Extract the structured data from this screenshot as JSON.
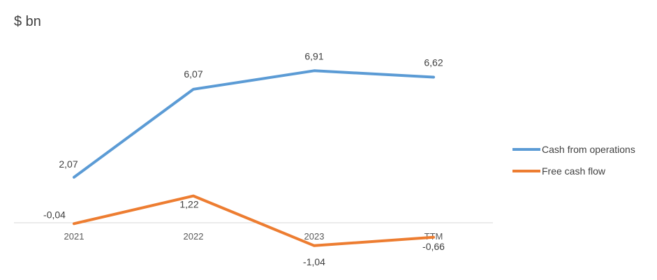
{
  "chart_data": {
    "type": "line",
    "unit_label": "$ bn",
    "categories": [
      "2021",
      "2022",
      "2023",
      "TTM"
    ],
    "series": [
      {
        "name": "Cash from operations",
        "color": "#5b9bd5",
        "values": [
          2.07,
          6.07,
          6.91,
          6.62
        ],
        "labels": [
          "2,07",
          "6,07",
          "6,91",
          "6,62"
        ]
      },
      {
        "name": "Free cash flow",
        "color": "#ed7d31",
        "values": [
          -0.04,
          1.22,
          -1.04,
          -0.66
        ],
        "labels": [
          "-0,04",
          "1,22",
          "-1,04",
          "-0,66"
        ]
      }
    ],
    "legend_position": "right",
    "grid": false
  }
}
